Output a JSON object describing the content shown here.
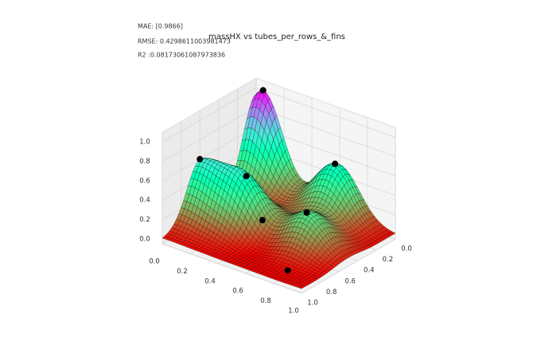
{
  "chart_data": {
    "type": "surface3d",
    "title": "massHX vs tubes_per_rows_&_fins",
    "annotations": [
      "MAE: [0.9866]",
      "RMSE: 0.4298611003981473",
      "R2 :0.08173061087973836"
    ],
    "points": {
      "x": [
        0.05,
        0.6,
        0.0,
        0.3,
        0.45,
        0.7,
        0.8
      ],
      "y": [
        0.0,
        0.05,
        0.6,
        0.55,
        0.6,
        0.5,
        0.85
      ],
      "z": [
        1.0,
        0.55,
        0.6,
        0.55,
        0.2,
        0.35,
        0.0
      ]
    },
    "color": "#000000",
    "colormap": "rainbow_r",
    "xlim": [
      0,
      1
    ],
    "ylim": [
      0,
      1
    ],
    "zlim": [
      -0.05,
      1.1
    ],
    "xticks": [
      {
        "value": 0,
        "label": "0.0"
      },
      0.2,
      0.4,
      0.6,
      0.8,
      {
        "value": 1,
        "label": "1.0"
      }
    ],
    "yticks": [
      {
        "value": 0,
        "label": "0.0"
      },
      0.2,
      0.4,
      0.6,
      0.8,
      {
        "value": 1,
        "label": "1.0"
      }
    ],
    "zticks": [
      {
        "value": 0,
        "label": "0.0"
      },
      0.2,
      0.4,
      0.6,
      0.8,
      {
        "value": 1,
        "label": "1.0"
      }
    ],
    "grid": true
  }
}
